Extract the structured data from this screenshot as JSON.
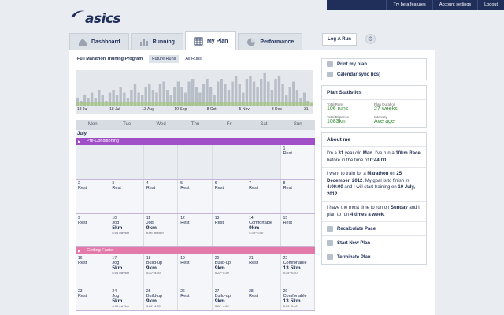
{
  "topbar": {
    "beta": "Try beta features",
    "settings": "Account settings",
    "logout": "Logout"
  },
  "brand": {
    "logo": "asics"
  },
  "tabs": [
    {
      "label": "Dashboard",
      "icon": "house-icon"
    },
    {
      "label": "Running",
      "icon": "bars-icon"
    },
    {
      "label": "My Plan",
      "icon": "grid-calendar-icon"
    },
    {
      "label": "Performance",
      "icon": "pie-icon"
    }
  ],
  "log_run": "Log A Run",
  "plan": {
    "title": "Full Marathon Training Program",
    "future": "Future Runs",
    "all": "All Runs"
  },
  "chart_data": {
    "type": "bar",
    "x_ticks": [
      "18 Jul",
      "18 Jul",
      "13 Aug",
      "10 Sep",
      "8 Oct",
      "5 Nov",
      "3 Dec",
      "31"
    ],
    "series": [
      {
        "values": [
          3,
          2,
          4,
          3,
          5,
          3,
          6,
          4,
          2,
          5,
          6,
          4,
          7,
          5,
          3,
          6,
          8,
          5,
          4,
          7,
          8,
          6,
          5,
          8,
          9,
          6,
          4,
          7,
          9,
          7,
          5,
          9,
          10,
          7,
          5,
          8,
          10,
          7,
          4,
          9,
          10,
          8,
          6,
          9,
          11,
          8,
          5,
          10,
          11,
          9,
          7,
          10,
          12,
          9,
          6,
          10,
          11,
          8,
          4,
          7,
          9,
          6,
          3,
          5,
          2,
          1
        ]
      }
    ],
    "colors": {
      "bars": "#b8bec7",
      "baseline": "#9cc76b"
    }
  },
  "calendar": {
    "days": [
      "Mon",
      "Tue",
      "Wed",
      "Thu",
      "Fri",
      "Sat",
      "Sun"
    ],
    "month": "July",
    "phase1": "Pre-Conditioning",
    "phase2": "Getting Faster",
    "week1": [
      "",
      "",
      "",
      "",
      "",
      "",
      "1|Rest||"
    ],
    "week2": [
      "2|Rest||",
      "3|Rest||",
      "4|Rest||",
      "5|Rest||",
      "6|Rest||",
      "7|Rest||",
      "8|Rest||"
    ],
    "week3": [
      "9|Rest||",
      "10|Jog|5km|6:06 min/km",
      "11|Jog|9km|6:06 min/km",
      "12|Rest||",
      "13|Rest||",
      "14|Comfortable|9km|5:35~5:40",
      "15|Rest||"
    ],
    "week4": [
      "16|Rest||",
      "17|Jog|5km|6:06 min/km",
      "18|Build-up|9km|5:22~4:30",
      "19|Rest||",
      "20|Build-up|9km|5:22~4:30",
      "21|Rest||",
      "22|Comfortable|13.5km|5:35~5:40"
    ],
    "week5": [
      "23|Rest||",
      "24|Jog|5km|6:06 min/km",
      "25|Build-up|9km|5:22~4:30",
      "26|Rest||",
      "27|Build-up|9km|5:22~4:30",
      "28|Rest||",
      "29|Comfortable|13.5km|5:35~5:40"
    ]
  },
  "side": {
    "print": "Print my plan",
    "sync": "Calendar sync (ics)",
    "stats_title": "Plan Statistics",
    "total_runs_label": "Total Runs",
    "total_runs": "106 runs",
    "duration_label": "Plan Duration",
    "duration": "27 weeks",
    "distance_label": "Total Distance",
    "distance": "1083km",
    "intensity_label": "Intensity",
    "intensity": "Average",
    "about_title": "About me",
    "recalc": "Recalculate Pace",
    "new_plan": "Start New Plan",
    "terminate": "Terminate Plan"
  }
}
